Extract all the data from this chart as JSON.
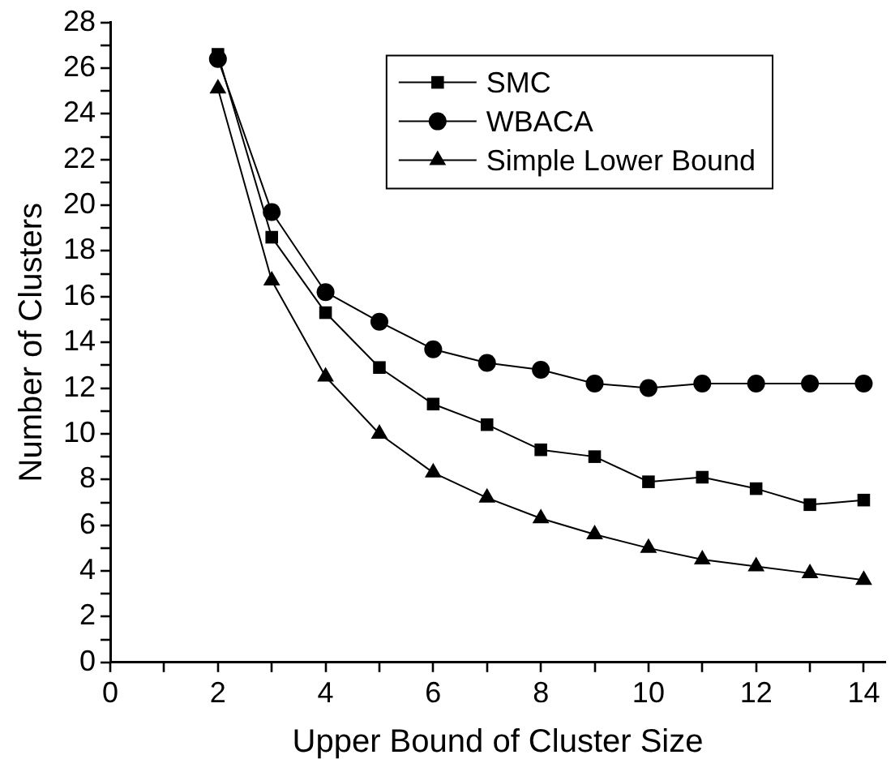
{
  "chart_data": {
    "type": "line",
    "xlabel": "Upper Bound of Cluster Size",
    "ylabel": "Number of Clusters",
    "x": [
      2,
      3,
      4,
      5,
      6,
      7,
      8,
      9,
      10,
      11,
      12,
      13,
      14
    ],
    "series": [
      {
        "name": "SMC",
        "color": "#000000",
        "marker": "square",
        "values": [
          26.6,
          18.6,
          15.3,
          12.9,
          11.3,
          10.4,
          9.3,
          9.0,
          7.9,
          8.1,
          7.6,
          6.9,
          7.1
        ]
      },
      {
        "name": "WBACA",
        "color": "#000000",
        "marker": "circle",
        "values": [
          26.4,
          19.7,
          16.2,
          14.9,
          13.7,
          13.1,
          12.8,
          12.2,
          12.0,
          12.2,
          12.2,
          12.2,
          12.2
        ]
      },
      {
        "name": "Simple Lower Bound",
        "color": "#000000",
        "marker": "triangle",
        "values": [
          25.1,
          16.7,
          12.5,
          10.0,
          8.3,
          7.2,
          6.3,
          5.6,
          5.0,
          4.5,
          4.2,
          3.9,
          3.6
        ]
      }
    ],
    "xlim": [
      0,
      14.4
    ],
    "xticks": [
      0,
      {
        "value": 1,
        "label": null
      },
      2,
      {
        "value": 3,
        "label": null
      },
      4,
      {
        "value": 5,
        "label": null
      },
      6,
      {
        "value": 7,
        "label": null
      },
      8,
      {
        "value": 9,
        "label": null
      },
      10,
      {
        "value": 11,
        "label": null
      },
      12,
      {
        "value": 13,
        "label": null
      },
      14
    ],
    "ylim": [
      0,
      28
    ],
    "yticks": [
      0,
      {
        "value": 1,
        "label": null
      },
      2,
      {
        "value": 3,
        "label": null
      },
      4,
      {
        "value": 5,
        "label": null
      },
      6,
      {
        "value": 7,
        "label": null
      },
      8,
      {
        "value": 9,
        "label": null
      },
      10,
      {
        "value": 11,
        "label": null
      },
      12,
      {
        "value": 13,
        "label": null
      },
      14,
      {
        "value": 15,
        "label": null
      },
      16,
      {
        "value": 17,
        "label": null
      },
      18,
      {
        "value": 19,
        "label": null
      },
      20,
      {
        "value": 21,
        "label": null
      },
      22,
      {
        "value": 23,
        "label": null
      },
      24,
      {
        "value": 25,
        "label": null
      },
      26,
      {
        "value": 27,
        "label": null
      },
      28
    ],
    "grid": false,
    "legend": "top right",
    "line_style": "solid"
  }
}
